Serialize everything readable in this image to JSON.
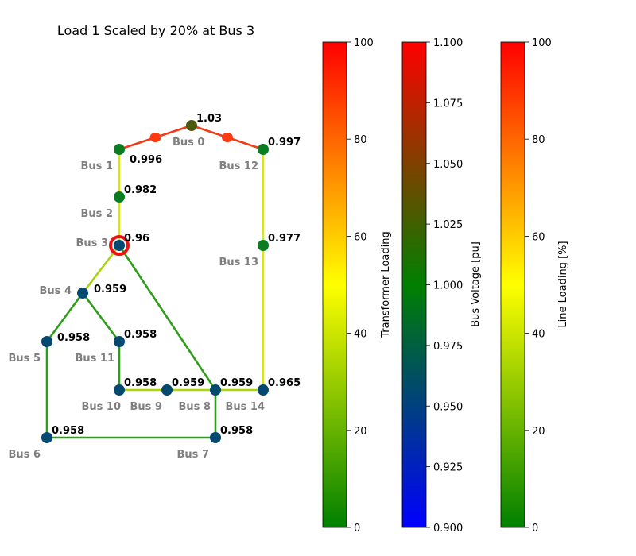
{
  "title": "Load 1 Scaled by 20% at Bus 3",
  "colors": {
    "line_green": "#2e9e1a",
    "line_yellow": "#d8e614",
    "line_ygreen": "#a9d40e",
    "line_red": "#ee3a16",
    "trafo_dot": "#ff3a10",
    "bus_navy": "#044a70",
    "bus_green": "#0a7d22",
    "bus_olive": "#4b5a10",
    "highlight": "#ee1111",
    "bus_label": "#7f7f7f"
  },
  "network": {
    "buses": [
      {
        "id": "b0",
        "name": "Bus 0",
        "voltage": "1.03",
        "pu": 1.03
      },
      {
        "id": "b1",
        "name": "Bus 1",
        "voltage": "0.996",
        "pu": 0.996
      },
      {
        "id": "b2",
        "name": "Bus 2",
        "voltage": "0.982",
        "pu": 0.982
      },
      {
        "id": "b3",
        "name": "Bus 3",
        "voltage": "0.96",
        "pu": 0.96
      },
      {
        "id": "b4",
        "name": "Bus 4",
        "voltage": "0.959",
        "pu": 0.959
      },
      {
        "id": "b5",
        "name": "Bus 5",
        "voltage": "0.958",
        "pu": 0.958
      },
      {
        "id": "b6",
        "name": "Bus 6",
        "voltage": "0.958",
        "pu": 0.958
      },
      {
        "id": "b7",
        "name": "Bus 7",
        "voltage": "0.958",
        "pu": 0.958
      },
      {
        "id": "b8",
        "name": "Bus 8",
        "voltage": "0.959",
        "pu": 0.959
      },
      {
        "id": "b9",
        "name": "Bus 9",
        "voltage": "0.959",
        "pu": 0.959
      },
      {
        "id": "b10",
        "name": "Bus 10",
        "voltage": "0.958",
        "pu": 0.958
      },
      {
        "id": "b11",
        "name": "Bus 11",
        "voltage": "0.958",
        "pu": 0.958
      },
      {
        "id": "b12",
        "name": "Bus 12",
        "voltage": "0.997",
        "pu": 0.997
      },
      {
        "id": "b13",
        "name": "Bus 13",
        "voltage": "0.977",
        "pu": 0.977
      },
      {
        "id": "b14",
        "name": "Bus 14",
        "voltage": "0.965",
        "pu": 0.965
      }
    ],
    "lines": [
      {
        "from": "b1",
        "to": "b2",
        "loading": 45
      },
      {
        "from": "b2",
        "to": "b3",
        "loading": 45
      },
      {
        "from": "b3",
        "to": "b4",
        "loading": 37
      },
      {
        "from": "b3",
        "to": "b8",
        "loading": 18
      },
      {
        "from": "b4",
        "to": "b5",
        "loading": 18
      },
      {
        "from": "b4",
        "to": "b11",
        "loading": 18
      },
      {
        "from": "b11",
        "to": "b10",
        "loading": 18
      },
      {
        "from": "b10",
        "to": "b9",
        "loading": 30
      },
      {
        "from": "b9",
        "to": "b8",
        "loading": 30
      },
      {
        "from": "b8",
        "to": "b14",
        "loading": 38
      },
      {
        "from": "b8",
        "to": "b7",
        "loading": 18
      },
      {
        "from": "b5",
        "to": "b6",
        "loading": 18
      },
      {
        "from": "b6",
        "to": "b7",
        "loading": 18
      },
      {
        "from": "b12",
        "to": "b13",
        "loading": 45
      },
      {
        "from": "b13",
        "to": "b14",
        "loading": 45
      }
    ],
    "transformers": [
      {
        "from": "b0",
        "to": "b1",
        "loading": 95
      },
      {
        "from": "b0",
        "to": "b12",
        "loading": 95
      }
    ],
    "highlighted_bus": "b3"
  },
  "colorbars": [
    {
      "id": "transformer",
      "label": "Transformer Loading",
      "range": [
        0,
        100
      ],
      "ticks": [
        "0",
        "20",
        "40",
        "60",
        "80",
        "100"
      ],
      "colormap": "green-yellow-red"
    },
    {
      "id": "voltage",
      "label": "Bus Voltage [pu]",
      "range": [
        0.9,
        1.1
      ],
      "ticks": [
        "0.900",
        "0.925",
        "0.950",
        "0.975",
        "1.000",
        "1.025",
        "1.050",
        "1.075",
        "1.100"
      ],
      "colormap": "blue-green-red"
    },
    {
      "id": "line",
      "label": "Line Loading [%]",
      "range": [
        0,
        100
      ],
      "ticks": [
        "0",
        "20",
        "40",
        "60",
        "80",
        "100"
      ],
      "colormap": "green-yellow-red"
    }
  ]
}
